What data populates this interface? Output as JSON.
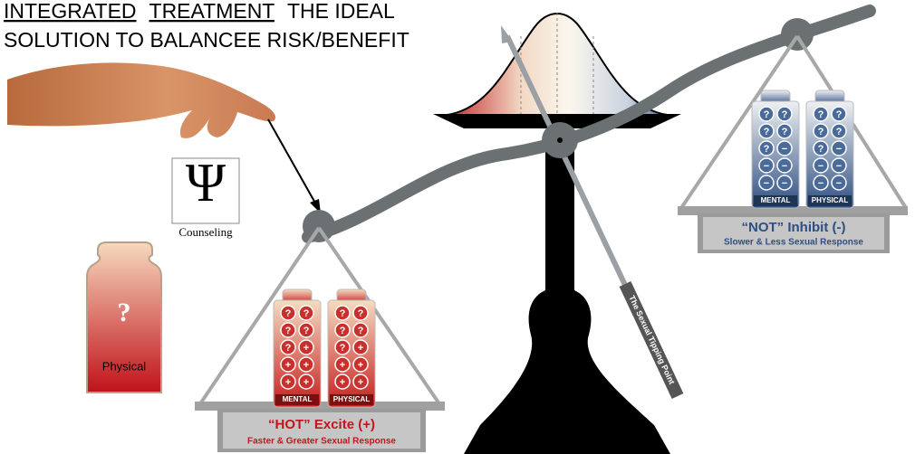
{
  "title": {
    "line1": [
      {
        "text": "INTEGRATED",
        "underline": true
      },
      {
        "text": "TREATMENT",
        "underline": true
      },
      {
        "text": "THE IDEAL",
        "underline": false
      }
    ],
    "line2": "SOLUTION TO BALANCEE RISK/BENEFIT"
  },
  "counseling": {
    "symbol": "Ψ",
    "label": "Counseling"
  },
  "weight": {
    "symbol": "?",
    "label": "Physical"
  },
  "pointer_label": "The Sexual Tipping Point",
  "left_pan": {
    "title": "“HOT” Excite (+)",
    "subtitle": "Faster & Greater Sexual Response",
    "packs": [
      {
        "label": "MENTAL",
        "pills": [
          [
            "?",
            "?"
          ],
          [
            "?",
            "?"
          ],
          [
            "?",
            "+"
          ],
          [
            "+",
            "+"
          ],
          [
            "+",
            "+"
          ]
        ]
      },
      {
        "label": "PHYSICAL",
        "pills": [
          [
            "?",
            "?"
          ],
          [
            "?",
            "?"
          ],
          [
            "?",
            "+"
          ],
          [
            "+",
            "+"
          ],
          [
            "+",
            "+"
          ]
        ]
      }
    ]
  },
  "right_pan": {
    "title": "“NOT” Inhibit (-)",
    "subtitle": "Slower & Less Sexual Response",
    "packs": [
      {
        "label": "MENTAL",
        "pills": [
          [
            "?",
            "?"
          ],
          [
            "?",
            "?"
          ],
          [
            "?",
            "−"
          ],
          [
            "−",
            "−"
          ],
          [
            "−",
            "−"
          ]
        ]
      },
      {
        "label": "PHYSICAL",
        "pills": [
          [
            "?",
            "?"
          ],
          [
            "?",
            "?"
          ],
          [
            "?",
            "−"
          ],
          [
            "−",
            "−"
          ],
          [
            "−",
            "−"
          ]
        ]
      }
    ]
  }
}
